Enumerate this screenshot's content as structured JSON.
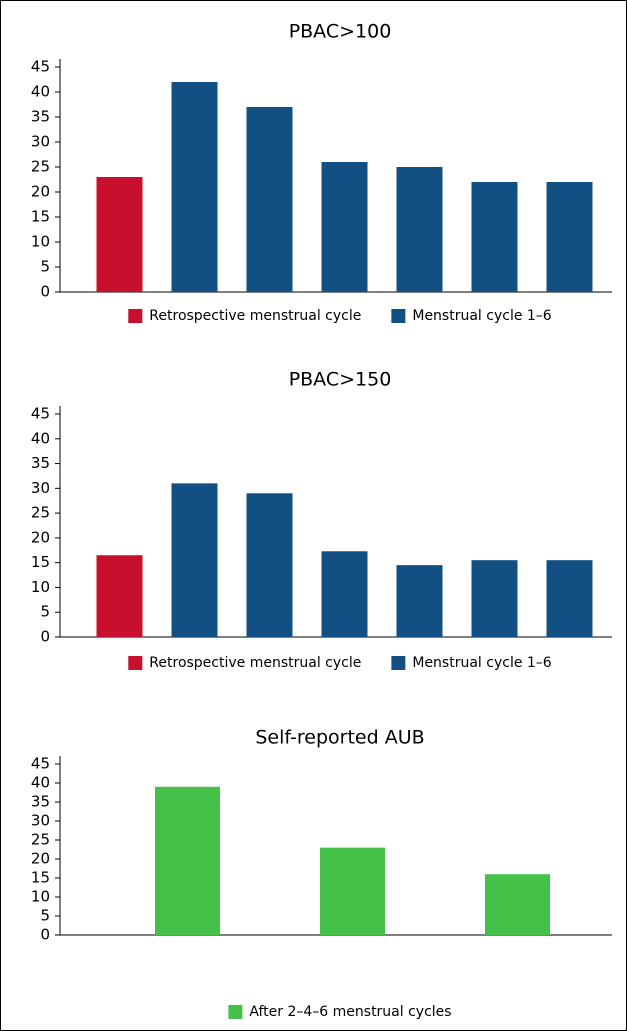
{
  "chart_data": [
    {
      "type": "bar",
      "title": "PBAC>100",
      "categories": [
        null,
        null,
        null,
        null,
        null,
        null,
        null
      ],
      "series": [
        {
          "name": "Retrospective menstrual cycle",
          "color": "#c8102e",
          "values": [
            23,
            null,
            null,
            null,
            null,
            null,
            null
          ]
        },
        {
          "name": "Menstrual cycle 1–6",
          "color": "#124f82",
          "values": [
            null,
            42,
            37,
            26,
            25,
            22,
            22
          ]
        }
      ],
      "ylim": [
        0,
        45
      ],
      "yticks": [
        0,
        5,
        10,
        15,
        20,
        25,
        30,
        35,
        40,
        45
      ]
    },
    {
      "type": "bar",
      "title": "PBAC>150",
      "categories": [
        null,
        null,
        null,
        null,
        null,
        null,
        null
      ],
      "series": [
        {
          "name": "Retrospective menstrual cycle",
          "color": "#c8102e",
          "values": [
            16.5,
            null,
            null,
            null,
            null,
            null,
            null
          ]
        },
        {
          "name": "Menstrual cycle 1–6",
          "color": "#124f82",
          "values": [
            null,
            31,
            29,
            17.3,
            14.5,
            15.5,
            15.5
          ]
        }
      ],
      "ylim": [
        0,
        45
      ],
      "yticks": [
        0,
        5,
        10,
        15,
        20,
        25,
        30,
        35,
        40,
        45
      ]
    },
    {
      "type": "bar",
      "title": "Self-reported AUB",
      "categories": [
        null,
        null,
        null
      ],
      "series": [
        {
          "name": "After 2–4–6 menstrual cycles",
          "color": "#45c14a",
          "values": [
            39,
            23,
            16
          ]
        }
      ],
      "ylim": [
        0,
        45
      ],
      "yticks": [
        0,
        5,
        10,
        15,
        20,
        25,
        30,
        35,
        40,
        45
      ]
    }
  ]
}
